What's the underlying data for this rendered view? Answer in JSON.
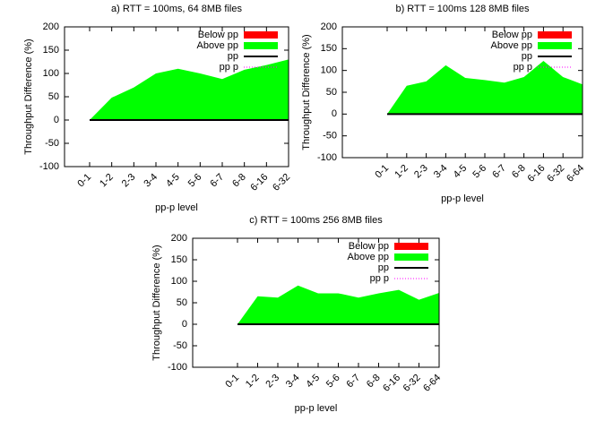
{
  "chart_data": [
    {
      "type": "area",
      "title": "a) RTT = 100ms, 64  8MB files",
      "xlabel": "pp-p level",
      "ylabel": "Throughput Difference (%)",
      "categories": [
        "0-1",
        "1-2",
        "2-3",
        "3-4",
        "4-5",
        "5-6",
        "6-7",
        "6-8",
        "6-16",
        "6-32"
      ],
      "series": [
        {
          "name": "Below pp",
          "color": "#ff0000",
          "kind": "area-below"
        },
        {
          "name": "Above pp",
          "color": "#00ff00",
          "kind": "area",
          "values": [
            0,
            48,
            70,
            100,
            110,
            100,
            88,
            108,
            118,
            130
          ]
        },
        {
          "name": "pp",
          "color": "#000000",
          "kind": "baseline"
        },
        {
          "name": "pp p",
          "color": "#ff00ff",
          "kind": "dotted"
        }
      ],
      "ylim": [
        -100,
        200
      ],
      "yticks": [
        -100,
        -50,
        0,
        50,
        100,
        150,
        200
      ]
    },
    {
      "type": "area",
      "title": "b) RTT = 100ms 128 8MB files",
      "xlabel": "pp-p level",
      "ylabel": "Throughput Difference (%)",
      "categories": [
        "0-1",
        "1-2",
        "2-3",
        "3-4",
        "4-5",
        "5-6",
        "6-7",
        "6-8",
        "6-16",
        "6-32",
        "6-64"
      ],
      "series": [
        {
          "name": "Below pp",
          "color": "#ff0000",
          "kind": "area-below"
        },
        {
          "name": "Above pp",
          "color": "#00ff00",
          "kind": "area",
          "values": [
            0,
            65,
            75,
            112,
            83,
            78,
            72,
            85,
            122,
            85,
            68
          ]
        },
        {
          "name": "pp",
          "color": "#000000",
          "kind": "baseline"
        },
        {
          "name": "pp p",
          "color": "#ff00ff",
          "kind": "dotted"
        }
      ],
      "ylim": [
        -100,
        200
      ],
      "yticks": [
        -100,
        -50,
        0,
        50,
        100,
        150,
        200
      ]
    },
    {
      "type": "area",
      "title": "c) RTT = 100ms 256 8MB files",
      "xlabel": "pp-p level",
      "ylabel": "Throughput Difference (%)",
      "categories": [
        "0-1",
        "1-2",
        "2-3",
        "3-4",
        "4-5",
        "5-6",
        "6-7",
        "6-8",
        "6-16",
        "6-32",
        "6-64"
      ],
      "series": [
        {
          "name": "Below pp",
          "color": "#ff0000",
          "kind": "area-below"
        },
        {
          "name": "Above pp",
          "color": "#00ff00",
          "kind": "area",
          "values": [
            0,
            65,
            62,
            90,
            72,
            72,
            62,
            72,
            80,
            57,
            73
          ]
        },
        {
          "name": "pp",
          "color": "#000000",
          "kind": "baseline"
        },
        {
          "name": "pp p",
          "color": "#ff00ff",
          "kind": "dotted"
        }
      ],
      "ylim": [
        -100,
        200
      ],
      "yticks": [
        -100,
        -50,
        0,
        50,
        100,
        150,
        200
      ]
    }
  ]
}
